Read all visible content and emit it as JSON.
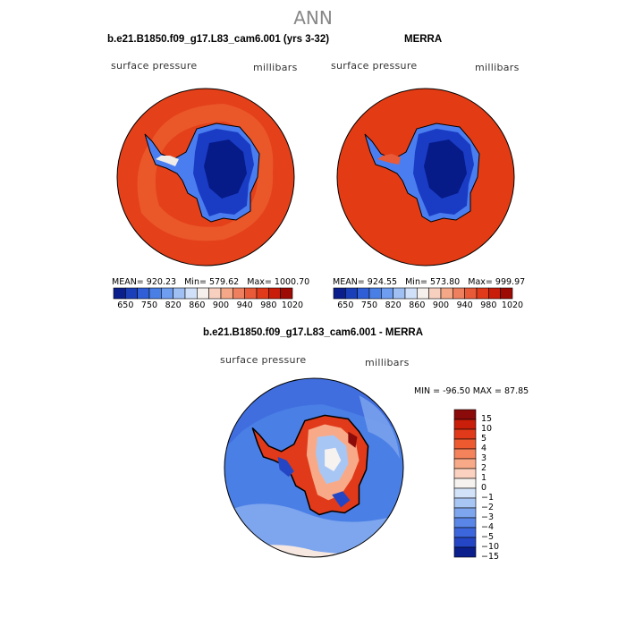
{
  "figure": {
    "title": "ANN"
  },
  "panels": [
    {
      "case_title": "b.e21.B1850.f09_g17.L83_cam6.001 (yrs 3-32)",
      "variable_label": "surface pressure",
      "units_label": "millibars",
      "stats": {
        "mean_label": "MEAN=",
        "mean": "920.23",
        "min_label": "Min=",
        "min": "579.62",
        "max_label": "Max=",
        "max": "1000.70"
      }
    },
    {
      "case_title": "MERRA",
      "variable_label": "surface pressure",
      "units_label": "millibars",
      "stats": {
        "mean_label": "MEAN=",
        "mean": "924.55",
        "min_label": "Min=",
        "min": "573.80",
        "max_label": "Max=",
        "max": "999.97"
      }
    }
  ],
  "colorbar_abs": {
    "colors": [
      "#0a1e8c",
      "#1a3fb8",
      "#2f5ed6",
      "#4a7fe6",
      "#6f9ef0",
      "#a0c0f4",
      "#d0e0f8",
      "#f6f0ec",
      "#f8d0c0",
      "#f4a888",
      "#ee8060",
      "#e85a38",
      "#e03a1a",
      "#c81e0a",
      "#9e0a04"
    ],
    "tick_labels": [
      "650",
      "750",
      "820",
      "860",
      "900",
      "940",
      "980",
      "1020"
    ]
  },
  "difference": {
    "title": "b.e21.B1850.f09_g17.L83_cam6.001 - MERRA",
    "variable_label": "surface pressure",
    "units_label": "millibars",
    "stats": {
      "min_label": "MIN =",
      "min": "-96.50",
      "max_label": "MAX =",
      "max": "87.85"
    },
    "colorbar": {
      "colors": [
        "#8b0a0a",
        "#c81e0a",
        "#e03a1a",
        "#ee5a30",
        "#f4825a",
        "#f8aa88",
        "#fbd2c0",
        "#f6f2f0",
        "#d2e2f8",
        "#a8c6f4",
        "#7ea6ee",
        "#5a86e8",
        "#3c66dc",
        "#2446c4",
        "#0a1e8c"
      ],
      "tick_labels": [
        "15",
        "10",
        "5",
        "4",
        "3",
        "2",
        "1",
        "0",
        "−1",
        "−2",
        "−3",
        "−4",
        "−5",
        "−10",
        "−15"
      ]
    }
  },
  "colors": {
    "ocean_model": "#e4401a",
    "ocean_obs": "#e33c14",
    "inner_band": "#ee6a36",
    "ice_deep": "#061a88",
    "ice_mid": "#1a3cc4",
    "ice_edge": "#4a7ef0",
    "diff_ocean": "#4a7fe6",
    "diff_ocean_light": "#7ea6ee"
  }
}
